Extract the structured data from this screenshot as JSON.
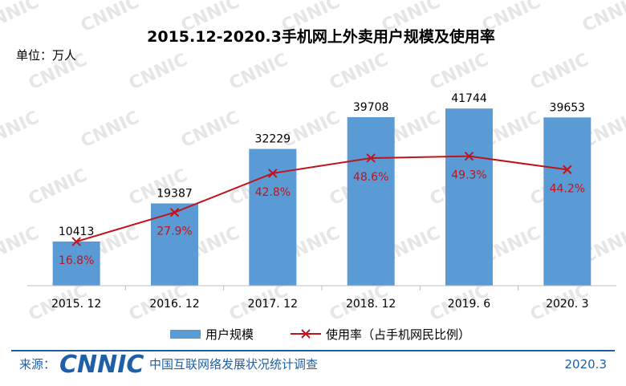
{
  "chart_data": {
    "type": "bar",
    "title": "2015.12-2020.3手机网上外卖用户规模及使用率",
    "unit_label": "单位：万人",
    "categories": [
      "2015. 12",
      "2016. 12",
      "2017. 12",
      "2018. 12",
      "2019. 6",
      "2020. 3"
    ],
    "series": [
      {
        "name": "用户规模",
        "type": "bar",
        "color": "#5b9bd5",
        "values": [
          10413,
          19387,
          32229,
          39708,
          41744,
          39653
        ],
        "labels": [
          "10413",
          "19387",
          "32229",
          "39708",
          "41744",
          "39653"
        ]
      },
      {
        "name": "使用率（占手机网民比例）",
        "type": "line",
        "color": "#c0141c",
        "values": [
          16.8,
          27.9,
          42.8,
          48.6,
          49.3,
          44.2
        ],
        "labels": [
          "16.8%",
          "27.9%",
          "42.8%",
          "48.6%",
          "49.3%",
          "44.2%"
        ]
      }
    ],
    "ylim_bar": [
      0,
      45000
    ],
    "ylim_line": [
      0,
      80
    ],
    "grid": false,
    "legend_position": "bottom"
  },
  "footer": {
    "source_label": "来源：",
    "logo_text": "CNNIC",
    "organization": "中国互联网络发展状况统计调查",
    "date": "2020.3"
  },
  "watermark_text": "CNNIC",
  "colors": {
    "bar": "#5b9bd5",
    "line": "#c0141c",
    "footer_line": "#1f5fa8",
    "brand": "#1f5fa8"
  }
}
